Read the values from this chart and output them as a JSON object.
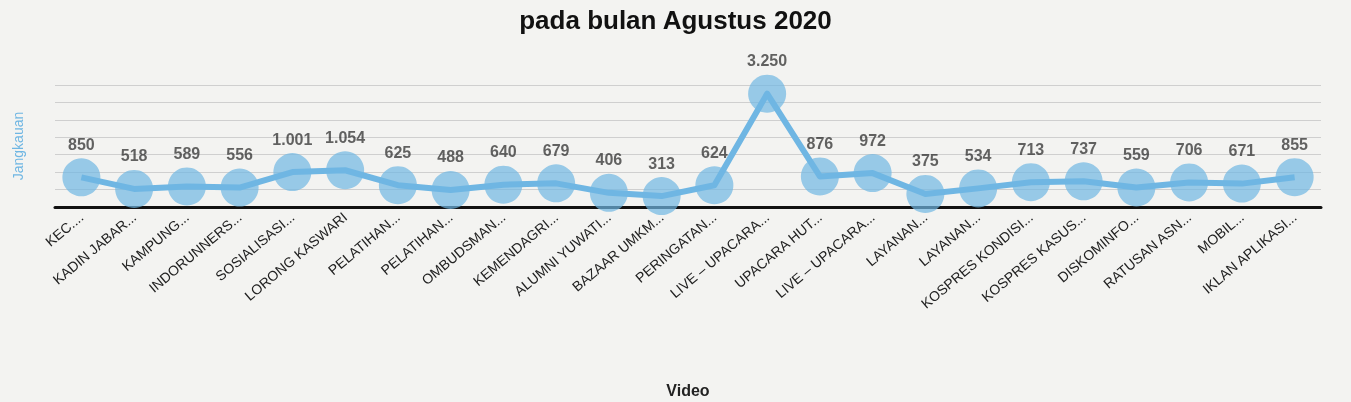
{
  "chart_data": {
    "type": "line",
    "title": "pada bulan Agustus 2020",
    "xlabel": "Video",
    "ylabel": "Jangkauan",
    "categories": [
      "KEC....",
      "KADIN JABAR...",
      "KAMPUNG...",
      "INDORUNNERS...",
      "SOSIALISASI...",
      "LORONG KASWARI",
      "PELATIHAN...",
      "PELATIHAN...",
      "OMBUDSMAN...",
      "KEMENDAGRI...",
      "ALUMNI YUWATI...",
      "BAZAAR UMKM...",
      "PERINGATAN...",
      "LIVE – UPACARA...",
      "UPACARA HUT...",
      "LIVE – UPACARA...",
      "LAYANAN...",
      "LAYANAN...",
      "KOSPRES KONDISI...",
      "KOSPRES KASUS...",
      "DISKOMINFO...",
      "RATUSAN ASN...",
      "MOBIL...",
      "IKLAN APLIKASI..."
    ],
    "series": [
      {
        "color": "#6fb6e3",
        "values": [
          850,
          518,
          589,
          556,
          1001,
          1054,
          625,
          488,
          640,
          679,
          406,
          313,
          624,
          3250,
          876,
          972,
          375,
          534,
          713,
          737,
          559,
          706,
          671,
          855
        ],
        "value_labels": [
          "850",
          "518",
          "589",
          "556",
          "1.001",
          "1.054",
          "625",
          "488",
          "640",
          "679",
          "406",
          "313",
          "624",
          "3.250",
          "876",
          "972",
          "375",
          "534",
          "713",
          "737",
          "559",
          "706",
          "671",
          "855"
        ]
      }
    ],
    "marker": "circle",
    "grid": "y",
    "tick_labels": "x"
  }
}
